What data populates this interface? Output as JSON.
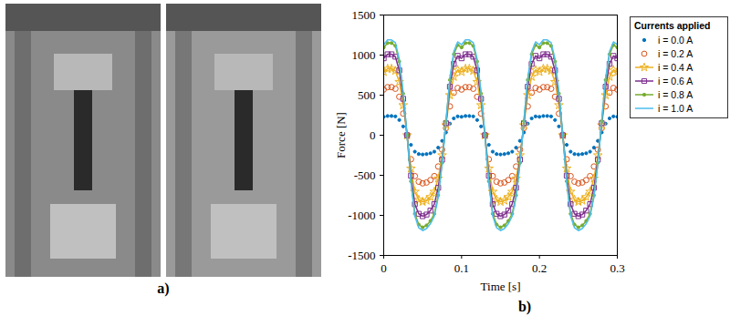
{
  "panel_labels": [
    "a)",
    "b)"
  ],
  "chart_data": {
    "type": "line",
    "x_label": "Time [s]",
    "y_label": "Force [N]",
    "legend_title": "Currents applied",
    "legend": "right",
    "grid": false,
    "xlim": [
      0,
      0.3
    ],
    "xticks": [
      0,
      0.1,
      0.2,
      0.3
    ],
    "ylim": [
      -1500,
      1500
    ],
    "yticks": [
      -1500,
      -1000,
      -500,
      0,
      500,
      1000,
      1500
    ],
    "x": [
      0,
      0.005,
      0.01,
      0.015,
      0.02,
      0.025,
      0.03,
      0.035,
      0.04,
      0.045,
      0.05,
      0.055,
      0.06,
      0.065,
      0.07,
      0.075,
      0.08,
      0.085,
      0.09,
      0.095,
      0.1,
      0.105,
      0.11,
      0.115,
      0.12,
      0.125,
      0.13,
      0.135,
      0.14,
      0.145,
      0.15,
      0.155,
      0.16,
      0.165,
      0.17,
      0.175,
      0.18,
      0.185,
      0.19,
      0.195,
      0.2,
      0.205,
      0.21,
      0.215,
      0.22,
      0.225,
      0.23,
      0.235,
      0.24,
      0.245,
      0.25,
      0.255,
      0.26,
      0.265,
      0.27,
      0.275,
      0.28,
      0.285,
      0.29,
      0.295,
      0.3
    ],
    "series": [
      {
        "name": "i = 0.0 A",
        "color": "#0072BD",
        "marker": "point",
        "line_style": "none",
        "values": [
          230,
          240,
          240,
          235,
          190,
          110,
          0,
          -120,
          -205,
          -235,
          -240,
          -235,
          -225,
          -205,
          -155,
          -70,
          35,
          145,
          210,
          235,
          230,
          240,
          240,
          235,
          190,
          110,
          0,
          -120,
          -205,
          -235,
          -240,
          -235,
          -225,
          -205,
          -155,
          -70,
          35,
          145,
          210,
          235,
          230,
          240,
          240,
          235,
          190,
          110,
          0,
          -120,
          -205,
          -235,
          -240,
          -235,
          -225,
          -205,
          -155,
          -70,
          35,
          145,
          210,
          235,
          230
        ]
      },
      {
        "name": "i = 0.2 A",
        "color": "#D95319",
        "marker": "circle",
        "line_style": "none",
        "values": [
          570,
          600,
          600,
          580,
          480,
          270,
          0,
          -300,
          -510,
          -580,
          -600,
          -590,
          -560,
          -510,
          -390,
          -180,
          90,
          360,
          530,
          590,
          570,
          600,
          600,
          580,
          480,
          270,
          0,
          -300,
          -510,
          -580,
          -600,
          -590,
          -560,
          -510,
          -390,
          -180,
          90,
          360,
          530,
          590,
          570,
          600,
          600,
          580,
          480,
          270,
          0,
          -300,
          -510,
          -580,
          -600,
          -590,
          -560,
          -510,
          -390,
          -180,
          90,
          360,
          530,
          590,
          570
        ]
      },
      {
        "name": "i = 0.4 A",
        "color": "#EDB120",
        "marker": "star",
        "line_style": "solid",
        "values": [
          790,
          830,
          830,
          805,
          665,
          375,
          0,
          -415,
          -705,
          -805,
          -830,
          -815,
          -770,
          -705,
          -540,
          -250,
          125,
          500,
          730,
          815,
          790,
          830,
          830,
          805,
          665,
          375,
          0,
          -415,
          -705,
          -805,
          -830,
          -815,
          -770,
          -705,
          -540,
          -250,
          125,
          500,
          730,
          815,
          790,
          830,
          830,
          805,
          665,
          375,
          0,
          -415,
          -705,
          -805,
          -830,
          -815,
          -770,
          -705,
          -540,
          -250,
          125,
          500,
          730,
          815,
          790
        ]
      },
      {
        "name": "i = 0.6 A",
        "color": "#7E2F8E",
        "marker": "square",
        "line_style": "solid",
        "values": [
          960,
          1010,
          1010,
          980,
          810,
          455,
          0,
          -505,
          -860,
          -980,
          -1010,
          -990,
          -940,
          -860,
          -655,
          -305,
          150,
          605,
          890,
          990,
          960,
          1010,
          1010,
          980,
          810,
          455,
          0,
          -505,
          -860,
          -980,
          -1010,
          -990,
          -940,
          -860,
          -655,
          -305,
          150,
          605,
          890,
          990,
          960,
          1010,
          1010,
          980,
          810,
          455,
          0,
          -505,
          -860,
          -980,
          -1010,
          -990,
          -940,
          -860,
          -655,
          -305,
          150,
          605,
          890,
          990,
          960
        ]
      },
      {
        "name": "i = 0.8 A",
        "color": "#77AC30",
        "marker": "point",
        "line_style": "solid",
        "values": [
          1095,
          1150,
          1150,
          1115,
          920,
          520,
          0,
          -575,
          -980,
          -1115,
          -1150,
          -1125,
          -1070,
          -980,
          -750,
          -345,
          175,
          690,
          1010,
          1125,
          1095,
          1150,
          1150,
          1115,
          920,
          520,
          0,
          -575,
          -980,
          -1115,
          -1150,
          -1125,
          -1070,
          -980,
          -750,
          -345,
          175,
          690,
          1010,
          1125,
          1095,
          1150,
          1150,
          1115,
          920,
          520,
          0,
          -575,
          -980,
          -1115,
          -1150,
          -1125,
          -1070,
          -980,
          -750,
          -345,
          175,
          690,
          1010,
          1125,
          1095
        ]
      },
      {
        "name": "i = 1.0 A",
        "color": "#4DBEEE",
        "marker": "none",
        "line_style": "solid",
        "values": [
          1130,
          1190,
          1190,
          1155,
          950,
          535,
          0,
          -595,
          -1010,
          -1155,
          -1190,
          -1165,
          -1105,
          -1010,
          -775,
          -355,
          180,
          715,
          1045,
          1165,
          1130,
          1190,
          1190,
          1155,
          950,
          535,
          0,
          -595,
          -1010,
          -1155,
          -1190,
          -1165,
          -1105,
          -1010,
          -775,
          -355,
          180,
          715,
          1045,
          1165,
          1130,
          1190,
          1190,
          1155,
          950,
          535,
          0,
          -595,
          -1010,
          -1155,
          -1190,
          -1165,
          -1105,
          -1010,
          -775,
          -355,
          180,
          715,
          1045,
          1165,
          1130
        ]
      }
    ]
  }
}
